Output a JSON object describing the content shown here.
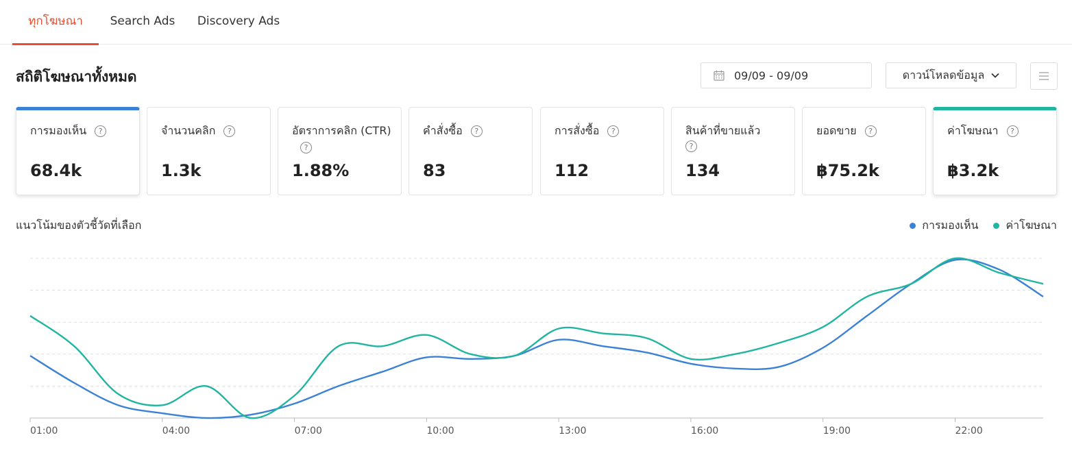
{
  "tabs": [
    {
      "label": "ทุกโฆษณา",
      "active": true
    },
    {
      "label": "Search Ads",
      "active": false
    },
    {
      "label": "Discovery Ads",
      "active": false
    }
  ],
  "section_title": "สถิติโฆษณาทั้งหมด",
  "date_range": "09/09 - 09/09",
  "download_label": "ดาวน์โหลดข้อมูล",
  "metrics": [
    {
      "label": "การมองเห็น",
      "value": "68.4k",
      "selected": "blue"
    },
    {
      "label": "จำนวนคลิก",
      "value": "1.3k"
    },
    {
      "label": "อัตราการคลิก (CTR)",
      "value": "1.88%"
    },
    {
      "label": "คำสั่งซื้อ",
      "value": "83"
    },
    {
      "label": "การสั่งซื้อ",
      "value": "112"
    },
    {
      "label": "สินค้าที่ขายแล้ว",
      "value": "134"
    },
    {
      "label": "ยอดขาย",
      "value": "฿75.2k"
    },
    {
      "label": "ค่าโฆษณา",
      "value": "฿3.2k",
      "selected": "green"
    }
  ],
  "help_icon_glyph": "?",
  "trend_title": "แนวโน้มของตัวชี้วัดที่เลือก",
  "colors": {
    "accent": "#ee4d2d",
    "series_blue": "#3b82d6",
    "series_green": "#1fb5a0"
  },
  "chart_data": {
    "type": "line",
    "x": [
      "01:00",
      "02:00",
      "03:00",
      "04:00",
      "05:00",
      "06:00",
      "07:00",
      "08:00",
      "09:00",
      "10:00",
      "11:00",
      "12:00",
      "13:00",
      "14:00",
      "15:00",
      "16:00",
      "17:00",
      "18:00",
      "19:00",
      "20:00",
      "21:00",
      "22:00",
      "23:00",
      "24:00"
    ],
    "xticks": [
      "01:00",
      "04:00",
      "07:00",
      "10:00",
      "13:00",
      "16:00",
      "19:00",
      "22:00"
    ],
    "series": [
      {
        "name": "การมองเห็น",
        "color": "#3b82d6",
        "values": [
          0.39,
          0.22,
          0.08,
          0.03,
          0.0,
          0.02,
          0.09,
          0.2,
          0.29,
          0.38,
          0.37,
          0.39,
          0.49,
          0.45,
          0.41,
          0.34,
          0.31,
          0.32,
          0.44,
          0.64,
          0.84,
          0.99,
          0.93,
          0.76
        ]
      },
      {
        "name": "ค่าโฆษณา",
        "color": "#1fb5a0",
        "values": [
          0.64,
          0.45,
          0.15,
          0.08,
          0.2,
          0.0,
          0.14,
          0.45,
          0.45,
          0.52,
          0.4,
          0.39,
          0.56,
          0.53,
          0.5,
          0.37,
          0.4,
          0.47,
          0.57,
          0.76,
          0.84,
          1.0,
          0.91,
          0.84
        ]
      }
    ],
    "ylim": [
      0,
      1
    ],
    "grid": true,
    "legend": "top-right"
  }
}
